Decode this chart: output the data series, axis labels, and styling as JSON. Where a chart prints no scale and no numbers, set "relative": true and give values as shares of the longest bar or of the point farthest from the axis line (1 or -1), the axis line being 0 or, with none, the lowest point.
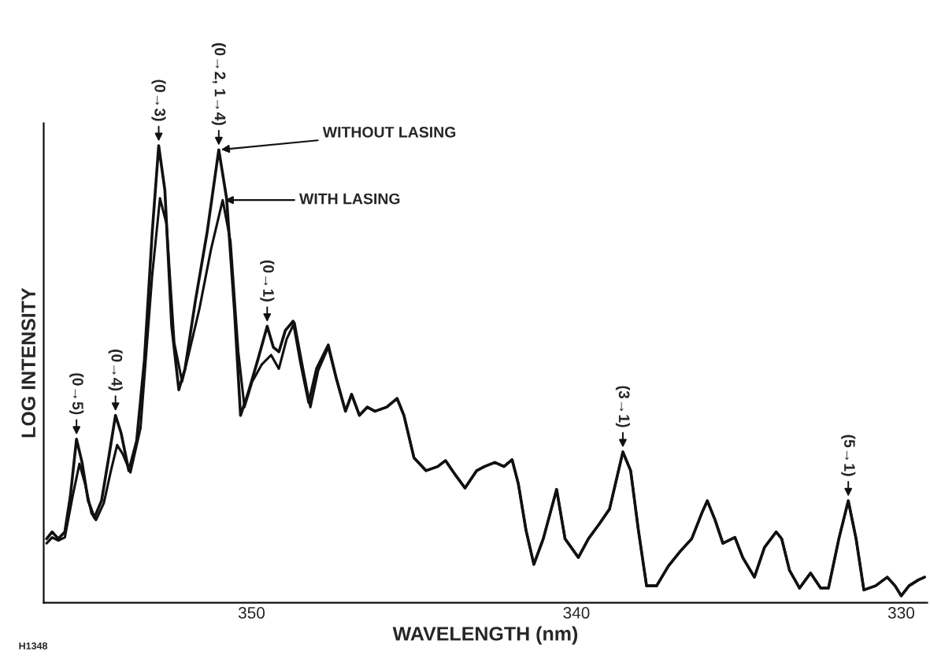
{
  "chart_data": {
    "type": "line",
    "relative": true,
    "xlabel": "WAVELENGTH (nm)",
    "ylabel": "LOG INTENSITY",
    "xlim": [
      356.4,
      329.2
    ],
    "xticks": [
      350,
      340,
      330
    ],
    "grid": false,
    "line_style": "solid",
    "marker": "none",
    "series": [
      {
        "name": "WITHOUT LASING",
        "color": "#111111",
        "x": [
          356.31,
          356.14,
          355.95,
          355.75,
          355.58,
          355.39,
          355.22,
          355.03,
          354.84,
          354.62,
          354.38,
          354.19,
          354.02,
          353.78,
          353.54,
          353.3,
          353.06,
          352.86,
          352.67,
          352.46,
          352.24,
          352.05,
          351.73,
          351.37,
          351.01,
          350.77,
          350.53,
          350.34,
          350.12,
          349.81,
          349.52,
          349.33,
          349.16,
          348.96,
          348.72,
          348.48,
          348.24,
          348.0,
          347.64,
          347.4,
          347.11,
          346.92,
          346.68,
          346.44,
          346.2,
          345.84,
          345.52,
          345.31,
          345.0,
          344.63,
          344.27,
          344.03,
          343.72,
          343.43,
          343.07,
          342.83,
          342.51,
          342.23,
          341.98,
          341.79,
          341.55,
          341.31,
          341.02,
          340.61,
          340.35,
          339.94,
          339.63,
          339.29,
          338.98,
          338.57,
          338.33,
          338.09,
          337.84,
          337.53,
          337.17,
          336.81,
          336.45,
          336.14,
          335.97,
          335.73,
          335.49,
          335.12,
          334.88,
          334.52,
          334.21,
          333.85,
          333.68,
          333.44,
          333.13,
          332.79,
          332.48,
          332.24,
          331.92,
          331.63,
          331.39,
          331.15,
          330.79,
          330.43,
          330.19,
          330.0,
          329.76,
          329.47,
          329.28
        ],
        "values": [
          0.14,
          0.155,
          0.14,
          0.155,
          0.233,
          0.358,
          0.307,
          0.223,
          0.186,
          0.223,
          0.326,
          0.41,
          0.372,
          0.289,
          0.354,
          0.531,
          0.81,
          1.0,
          0.903,
          0.605,
          0.466,
          0.512,
          0.661,
          0.81,
          0.991,
          0.885,
          0.642,
          0.41,
          0.456,
          0.531,
          0.605,
          0.559,
          0.549,
          0.596,
          0.616,
          0.521,
          0.438,
          0.512,
          0.564,
          0.493,
          0.419,
          0.456,
          0.41,
          0.428,
          0.419,
          0.428,
          0.447,
          0.41,
          0.317,
          0.289,
          0.298,
          0.311,
          0.279,
          0.251,
          0.289,
          0.298,
          0.307,
          0.298,
          0.313,
          0.261,
          0.158,
          0.084,
          0.14,
          0.248,
          0.14,
          0.099,
          0.14,
          0.173,
          0.205,
          0.33,
          0.289,
          0.158,
          0.037,
          0.037,
          0.08,
          0.112,
          0.14,
          0.196,
          0.223,
          0.181,
          0.13,
          0.143,
          0.099,
          0.056,
          0.121,
          0.155,
          0.14,
          0.071,
          0.032,
          0.065,
          0.032,
          0.032,
          0.14,
          0.223,
          0.14,
          0.028,
          0.037,
          0.056,
          0.037,
          0.015,
          0.037,
          0.05,
          0.056
        ]
      },
      {
        "name": "WITH LASING",
        "color": "#111111",
        "x": [
          356.31,
          356.14,
          355.95,
          355.75,
          355.51,
          355.3,
          355.13,
          354.93,
          354.79,
          354.55,
          354.33,
          354.14,
          353.97,
          353.73,
          353.42,
          353.06,
          352.82,
          352.62,
          352.38,
          352.14,
          351.95,
          351.61,
          351.25,
          350.89,
          350.65,
          350.41,
          350.22,
          349.98,
          349.69,
          349.4,
          349.16,
          348.92,
          348.68,
          348.44,
          348.19,
          347.95,
          347.64,
          347.4,
          347.11,
          346.92,
          346.68,
          346.44,
          346.2,
          345.84,
          345.52,
          345.31,
          345.0,
          344.63,
          344.27,
          344.03,
          343.72,
          343.43,
          343.07,
          342.83,
          342.51,
          342.23,
          341.98,
          341.79,
          341.55,
          341.31,
          341.02,
          340.61,
          340.35,
          339.94,
          339.63,
          339.29,
          338.98,
          338.57,
          338.33,
          338.09,
          337.84,
          337.53,
          337.17,
          336.81,
          336.45,
          336.14,
          335.97,
          335.73,
          335.49,
          335.12,
          334.88,
          334.52,
          334.21,
          333.85,
          333.68,
          333.44,
          333.13,
          332.79,
          332.48,
          332.24,
          331.92,
          331.63,
          331.39,
          331.15,
          330.79,
          330.43,
          330.19,
          330.0,
          329.76,
          329.47,
          329.28
        ],
        "values": [
          0.13,
          0.143,
          0.136,
          0.143,
          0.233,
          0.304,
          0.261,
          0.196,
          0.181,
          0.218,
          0.289,
          0.345,
          0.326,
          0.285,
          0.382,
          0.717,
          0.885,
          0.829,
          0.568,
          0.484,
          0.54,
          0.642,
          0.773,
          0.881,
          0.791,
          0.549,
          0.428,
          0.484,
          0.521,
          0.542,
          0.512,
          0.577,
          0.613,
          0.521,
          0.428,
          0.508,
          0.559,
          0.493,
          0.419,
          0.456,
          0.41,
          0.428,
          0.419,
          0.428,
          0.447,
          0.41,
          0.317,
          0.289,
          0.298,
          0.311,
          0.279,
          0.251,
          0.289,
          0.298,
          0.307,
          0.298,
          0.313,
          0.261,
          0.158,
          0.084,
          0.14,
          0.248,
          0.14,
          0.099,
          0.14,
          0.173,
          0.205,
          0.33,
          0.289,
          0.158,
          0.037,
          0.037,
          0.08,
          0.112,
          0.14,
          0.196,
          0.223,
          0.181,
          0.13,
          0.143,
          0.099,
          0.056,
          0.121,
          0.155,
          0.14,
          0.071,
          0.032,
          0.065,
          0.032,
          0.032,
          0.14,
          0.223,
          0.14,
          0.028,
          0.037,
          0.056,
          0.037,
          0.015,
          0.037,
          0.05,
          0.056
        ]
      }
    ],
    "annotations": [
      {
        "text": "(0→5)",
        "x": 355.39,
        "y": 0.358
      },
      {
        "text": "(0→4)",
        "x": 354.19,
        "y": 0.41
      },
      {
        "text": "(0→3)",
        "x": 352.86,
        "y": 1.0
      },
      {
        "text": "(0→2, 1→4)",
        "x": 351.01,
        "y": 0.991
      },
      {
        "text": "(0→1)",
        "x": 349.52,
        "y": 0.605
      },
      {
        "text": "(3→1)",
        "x": 338.57,
        "y": 0.33
      },
      {
        "text": "(5→1)",
        "x": 331.63,
        "y": 0.223
      },
      "H1348"
    ]
  }
}
